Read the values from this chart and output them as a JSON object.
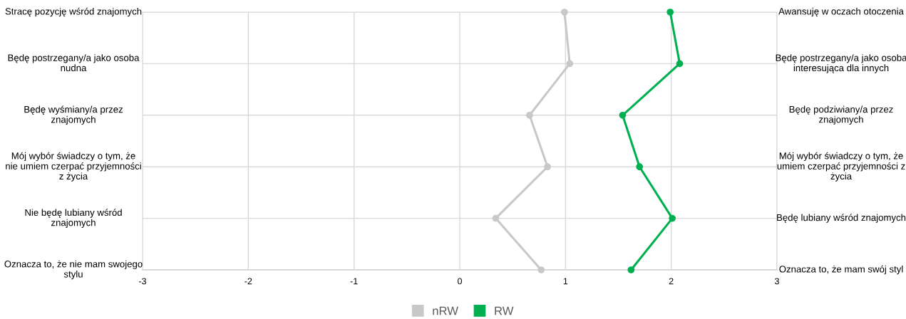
{
  "chart_data": {
    "type": "line",
    "orientation": "horizontal",
    "categories": [
      "Stracę pozycję wśród znajomych",
      "Będę postrzegany/a jako osoba\nnudna",
      "Będę wyśmiany/a przez\nznajomych",
      "Mój wybór świadczy o tym, że\nnie umiem czerpać przyjemności\nz życia",
      "Nie będę lubiany wśród\nznajomych",
      "Oznacza to, że nie mam swojego\nstylu"
    ],
    "y2_categories": [
      "Awansuję w oczach otoczenia",
      "Będę postrzegany/a jako osoba\ninteresująca dla innych",
      "Będę podziwiany/a przez\nznajomych",
      "Mój wybór świadczy o tym, że\numiem czerpać przyjemności z\nżycia",
      "Będę lubiany wśród znajomych",
      "Oznacza to, że mam swój styl"
    ],
    "series": [
      {
        "name": "nRW",
        "color": "#c8c8c8",
        "values": [
          0.99,
          1.04,
          0.66,
          0.83,
          0.34,
          0.77
        ]
      },
      {
        "name": "RW",
        "color": "#00b050",
        "values": [
          1.99,
          2.08,
          1.54,
          1.7,
          2.01,
          1.62
        ]
      }
    ],
    "xlim": [
      -3,
      3
    ],
    "xticks": [
      -3,
      -2,
      -1,
      0,
      1,
      2,
      3
    ],
    "grid": true,
    "legend": "bottom",
    "marker": "circle",
    "line_style": "solid"
  }
}
